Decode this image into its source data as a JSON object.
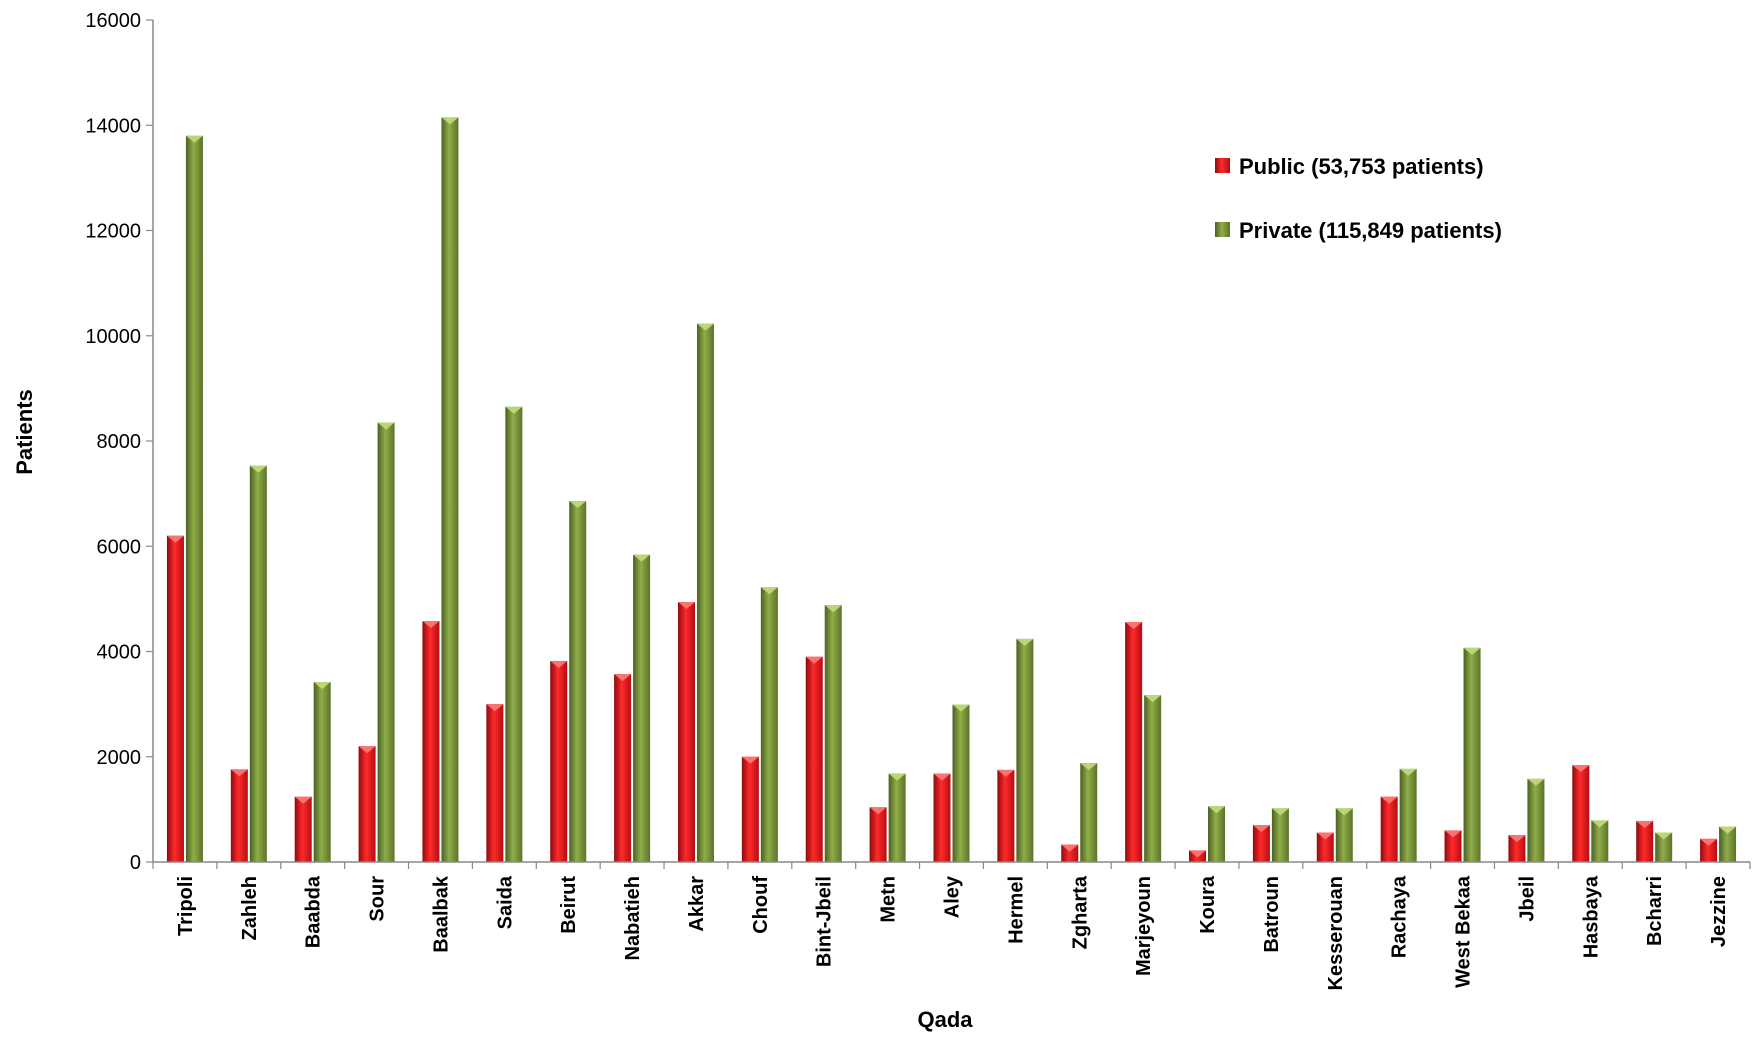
{
  "chart_data": {
    "type": "bar",
    "xlabel": "Qada",
    "ylabel": "Patients",
    "ylim": [
      0,
      16000
    ],
    "yticks": [
      "0",
      "2000",
      "4000",
      "6000",
      "8000",
      "10000",
      "12000",
      "14000",
      "16000"
    ],
    "grid": false,
    "legend_position": "top-right",
    "categories": [
      "Tripoli",
      "Zahleh",
      "Baabda",
      "Sour",
      "Baalbak",
      "Saida",
      "Beirut",
      "Nabatieh",
      "Akkar",
      "Chouf",
      "Bint-Jbeil",
      "Metn",
      "Aley",
      "Hermel",
      "Zgharta",
      "Marjeyoun",
      "Koura",
      "Batroun",
      "Kesserouan",
      "Rachaya",
      "West Bekaa",
      "Jbeil",
      "Hasbaya",
      "Bcharri",
      "Jezzine"
    ],
    "series": [
      {
        "name": "Public (53,753 patients)",
        "color": "#e8141b",
        "values": [
          6200,
          1760,
          1240,
          2200,
          4580,
          3000,
          3820,
          3570,
          4940,
          2000,
          3900,
          1040,
          1680,
          1750,
          330,
          4560,
          220,
          700,
          560,
          1240,
          600,
          510,
          1840,
          780,
          440
        ]
      },
      {
        "name": "Private (115,849 patients)",
        "color": "#77933c",
        "values": [
          13800,
          7530,
          3420,
          8350,
          14150,
          8650,
          6860,
          5840,
          10230,
          5220,
          4880,
          1680,
          2990,
          4240,
          1880,
          3170,
          1060,
          1020,
          1020,
          1770,
          4070,
          1580,
          790,
          560,
          670
        ]
      }
    ]
  }
}
